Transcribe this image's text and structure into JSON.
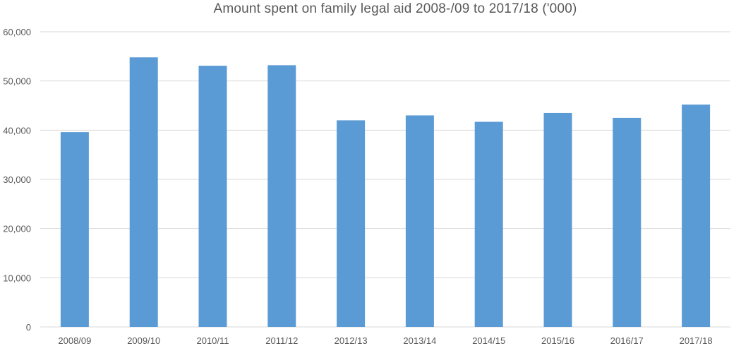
{
  "chart_data": {
    "type": "bar",
    "title": "Amount spent on family legal aid 2008-/09 to 2017/18 ('000)",
    "xlabel": "",
    "ylabel": "",
    "categories": [
      "2008/09",
      "2009/10",
      "2010/11",
      "2011/12",
      "2012/13",
      "2013/14",
      "2014/15",
      "2015/16",
      "2016/17",
      "2017/18"
    ],
    "values": [
      39600,
      54800,
      53100,
      53200,
      42000,
      43000,
      41700,
      43500,
      42500,
      45200
    ],
    "ylim": [
      0,
      60000
    ],
    "yticks": [
      0,
      10000,
      20000,
      30000,
      40000,
      50000,
      60000
    ],
    "ytick_labels": [
      "0",
      "10,000",
      "20,000",
      "30,000",
      "40,000",
      "50,000",
      "60,000"
    ],
    "grid": true,
    "legend": "none",
    "bar_color": "#5b9bd5"
  }
}
